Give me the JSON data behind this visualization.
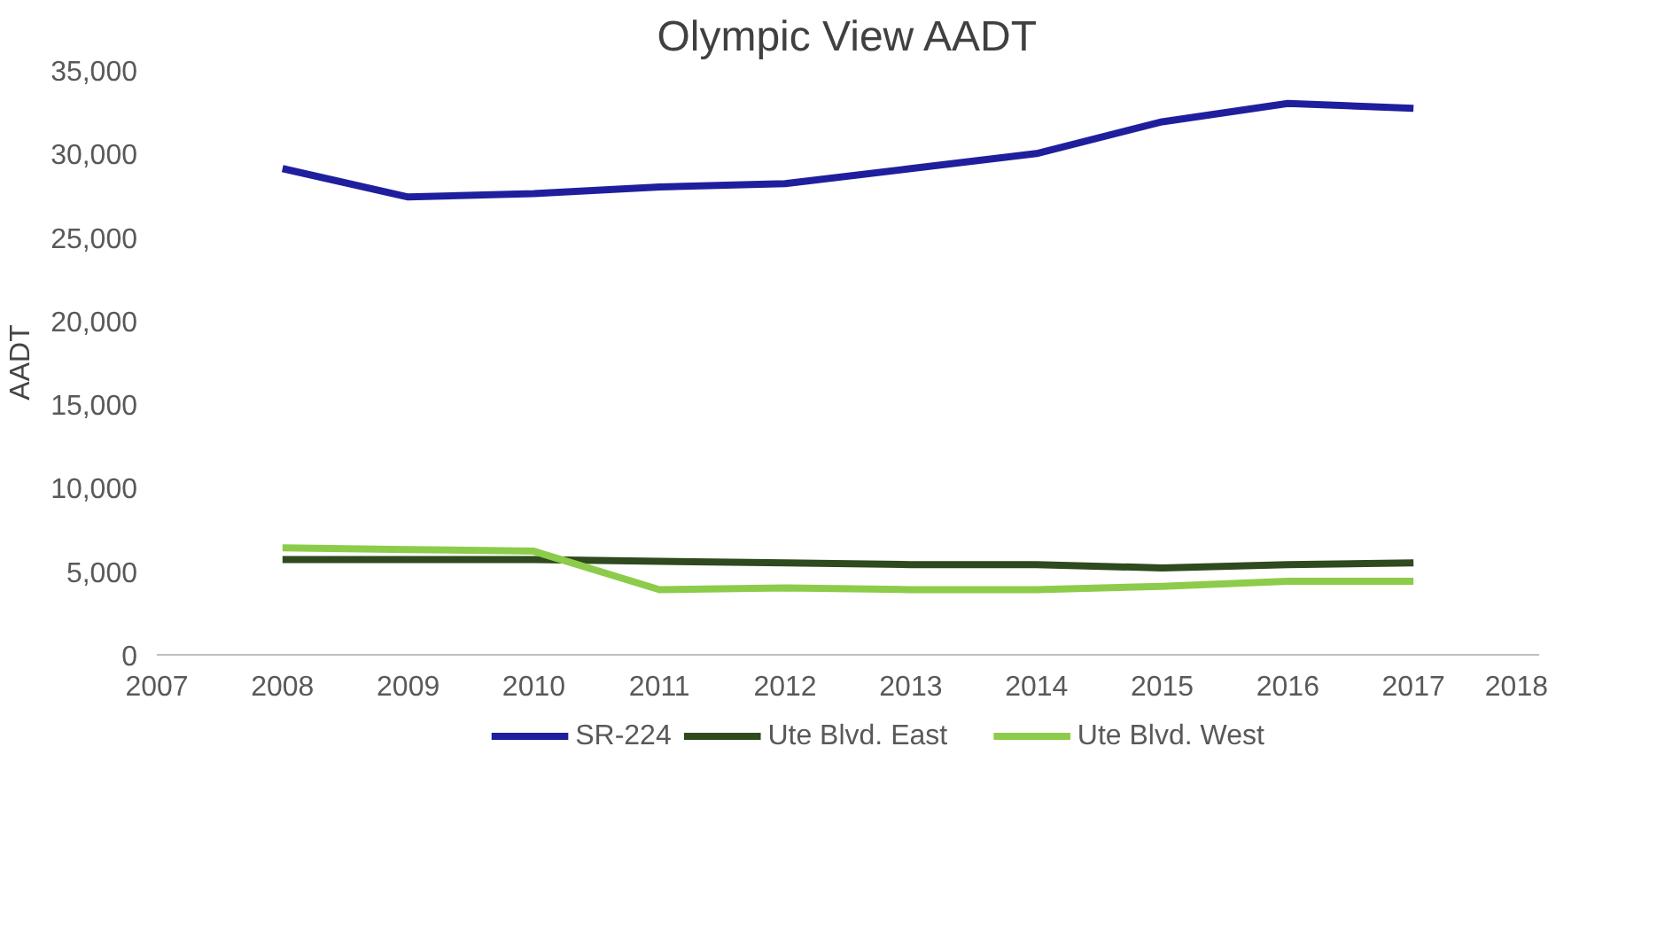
{
  "chart_data": {
    "type": "line",
    "title": "Olympic View AADT",
    "ylabel": "AADT",
    "x": [
      2008,
      2009,
      2010,
      2011,
      2012,
      2013,
      2014,
      2015,
      2016,
      2017
    ],
    "series": [
      {
        "name": "SR-224",
        "color": "#1f1f9e",
        "values": [
          29100,
          27400,
          27600,
          28000,
          28200,
          29100,
          30000,
          31900,
          33000,
          32700
        ]
      },
      {
        "name": "Ute Blvd. East",
        "color": "#2e4a1e",
        "values": [
          5700,
          5700,
          5700,
          5600,
          5500,
          5400,
          5400,
          5200,
          5400,
          5500
        ]
      },
      {
        "name": "Ute Blvd. West",
        "color": "#8ccc4a",
        "values": [
          6400,
          6300,
          6200,
          3900,
          4000,
          3900,
          3900,
          4100,
          4400,
          4400
        ]
      }
    ],
    "xlim": [
      2007,
      2018
    ],
    "xticks": [
      2007,
      2008,
      2009,
      2010,
      2011,
      2012,
      2013,
      2014,
      2015,
      2016,
      2017,
      2018
    ],
    "ylim": [
      0,
      35000
    ],
    "yticks": [
      {
        "value": 0,
        "label": "0"
      },
      {
        "value": 5000,
        "label": "5,000"
      },
      {
        "value": 10000,
        "label": "10,000"
      },
      {
        "value": 15000,
        "label": "15,000"
      },
      {
        "value": 20000,
        "label": "20,000"
      },
      {
        "value": 25000,
        "label": "25,000"
      },
      {
        "value": 30000,
        "label": "30,000"
      },
      {
        "value": 35000,
        "label": "35,000"
      }
    ],
    "grid": false,
    "legend": "bottom",
    "marker": "none",
    "line_style": "solid"
  }
}
